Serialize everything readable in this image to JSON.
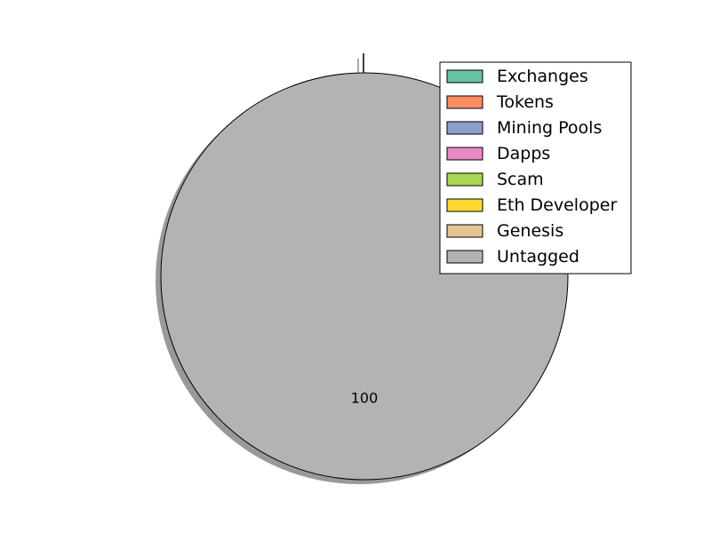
{
  "chart_data": {
    "type": "pie",
    "labels": [
      "Exchanges",
      "Tokens",
      "Mining Pools",
      "Dapps",
      "Scam",
      "Eth Developer",
      "Genesis",
      "Untagged"
    ],
    "values": [
      0,
      0,
      0,
      0,
      0,
      0,
      0,
      100
    ],
    "colors": [
      "#66c2a5",
      "#fc8d62",
      "#8da0cb",
      "#e78ac3",
      "#a6d854",
      "#ffd92f",
      "#e5c494",
      "#b3b3b3"
    ],
    "slice_labels": [
      "",
      "",
      "",
      "",
      "",
      "",
      "",
      "100"
    ],
    "shadow": true,
    "legend": "upper-right"
  }
}
